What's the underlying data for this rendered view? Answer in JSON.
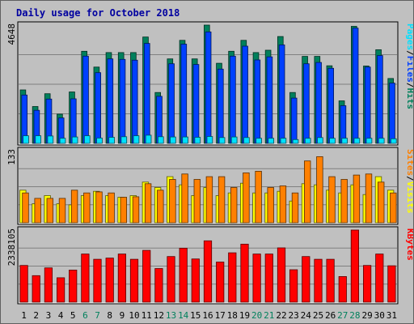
{
  "chart_data": {
    "type": "bar",
    "title": "Daily usage for October 2018",
    "categories": [
      "1",
      "2",
      "3",
      "4",
      "5",
      "6",
      "7",
      "8",
      "9",
      "10",
      "11",
      "12",
      "13",
      "14",
      "15",
      "16",
      "17",
      "18",
      "19",
      "20",
      "21",
      "22",
      "23",
      "24",
      "25",
      "26",
      "27",
      "28",
      "29",
      "30",
      "31"
    ],
    "weekend_days": [
      "6",
      "7",
      "13",
      "14",
      "20",
      "21",
      "27",
      "28"
    ],
    "panels": [
      {
        "name": "hits-files-pages",
        "ytick_label": "4648",
        "ylim": [
          0,
          4648
        ],
        "legend": [
          "Pages",
          "/",
          "Files",
          "/",
          "Hits"
        ],
        "series": [
          {
            "name": "Hits",
            "color": "#00805c",
            "values": [
              2100,
              1450,
              1950,
              1150,
              2020,
              3620,
              3000,
              3570,
              3570,
              3570,
              4180,
              2000,
              3320,
              4050,
              3320,
              4648,
              3150,
              3620,
              4050,
              3570,
              3660,
              4200,
              2000,
              3420,
              3420,
              3050,
              1670,
              4600,
              3040,
              3680,
              2550
            ]
          },
          {
            "name": "Files",
            "color": "#0040ff",
            "values": [
              1900,
              1300,
              1740,
              1000,
              1750,
              3430,
              2780,
              3320,
              3300,
              3270,
              3930,
              1850,
              3130,
              3900,
              3100,
              4380,
              2920,
              3430,
              3820,
              3280,
              3400,
              3870,
              1780,
              3130,
              3180,
              2950,
              1480,
              4530,
              3000,
              3450,
              2370
            ]
          },
          {
            "name": "Pages",
            "color": "#00e0ff",
            "values": [
              300,
              300,
              290,
              200,
              250,
              300,
              210,
              240,
              260,
              300,
              320,
              260,
              250,
              250,
              240,
              270,
              230,
              250,
              230,
              200,
              200,
              200,
              150,
              200,
              230,
              200,
              200,
              200,
              200,
              200,
              180
            ]
          }
        ]
      },
      {
        "name": "visits-sites",
        "ytick_label": "133",
        "ylim": [
          0,
          133
        ],
        "legend": [
          "Sites",
          "/",
          "Visits"
        ],
        "series": [
          {
            "name": "Visits",
            "color": "#ffff00",
            "values": [
              60,
              35,
              50,
              35,
              33,
              50,
              58,
              50,
              47,
              50,
              75,
              65,
              85,
              70,
              50,
              65,
              50,
              55,
              73,
              55,
              55,
              58,
              40,
              72,
              70,
              60,
              55,
              70,
              52,
              85,
              60
            ]
          },
          {
            "name": "Sites",
            "color": "#ff8000",
            "values": [
              55,
              45,
              45,
              45,
              60,
              55,
              57,
              55,
              47,
              48,
              72,
              60,
              80,
              90,
              80,
              85,
              85,
              65,
              92,
              95,
              65,
              68,
              55,
              114,
              122,
              85,
              80,
              88,
              90,
              75,
              55
            ]
          }
        ]
      },
      {
        "name": "kbytes",
        "ytick_label": "2338105",
        "ylim": [
          0,
          2338105
        ],
        "legend": [
          "KBytes"
        ],
        "series": [
          {
            "name": "KBytes",
            "color": "#ff0000",
            "values": [
              1190000,
              860000,
              1110000,
              790000,
              1040000,
              1560000,
              1390000,
              1430000,
              1560000,
              1390000,
              1680000,
              1090000,
              1480000,
              1750000,
              1400000,
              1990000,
              1300000,
              1600000,
              1880000,
              1560000,
              1560000,
              1760000,
              1050000,
              1480000,
              1390000,
              1390000,
              830000,
              2338105,
              1190000,
              1560000,
              1180000
            ]
          }
        ]
      }
    ],
    "grid": true
  }
}
